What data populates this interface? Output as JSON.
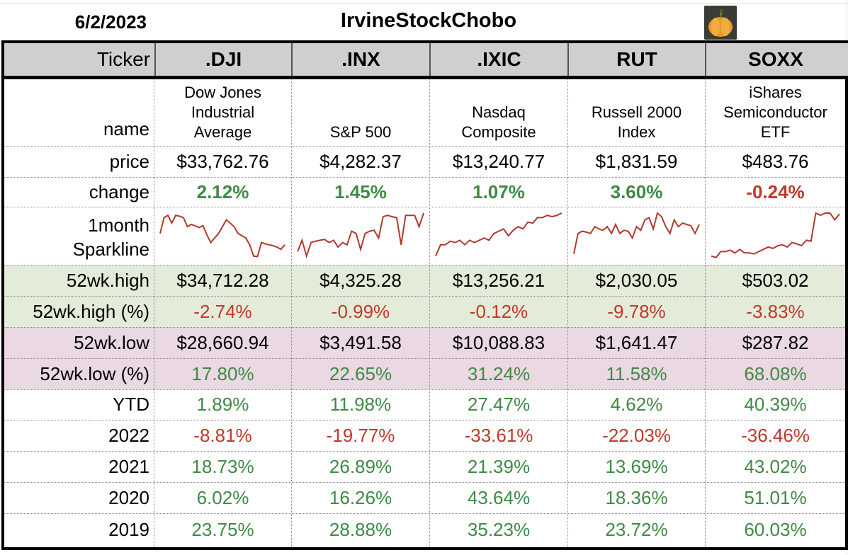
{
  "header": {
    "date": "6/2/2023",
    "title": "IrvineStockChobo"
  },
  "columns": {
    "label": "Ticker",
    "tickers": [
      ".DJI",
      ".INX",
      ".IXIC",
      "RUT",
      "SOXX"
    ]
  },
  "rows": {
    "name": {
      "label": "name",
      "values": [
        [
          "Dow Jones",
          "Industrial",
          "Average"
        ],
        [
          "S&P 500"
        ],
        [
          "Nasdaq",
          "Composite"
        ],
        [
          "Russell 2000",
          "Index"
        ],
        [
          "iShares",
          "Semiconductor",
          "ETF"
        ]
      ]
    },
    "price": {
      "label": "price",
      "values": [
        "$33,762.76",
        "$4,282.37",
        "$13,240.77",
        "$1,831.59",
        "$483.76"
      ]
    },
    "change": {
      "label": "change",
      "values": [
        "2.12%",
        "1.45%",
        "1.07%",
        "3.60%",
        "-0.24%"
      ]
    },
    "sparkline": {
      "label_line1": "1month",
      "label_line2": "Sparkline",
      "series": [
        [
          0.55,
          0.9,
          0.95,
          0.78,
          0.95,
          0.93,
          0.9,
          0.7,
          0.75,
          0.72,
          0.68,
          0.72,
          0.52,
          0.35,
          0.45,
          0.55,
          0.7,
          0.85,
          0.78,
          0.7,
          0.55,
          0.5,
          0.45,
          0.3,
          0.05,
          0.04,
          0.35,
          0.32,
          0.3,
          0.28,
          0.25,
          0.2,
          0.3
        ],
        [
          0.15,
          0.4,
          0.05,
          0.35,
          0.38,
          0.4,
          0.42,
          0.35,
          0.4,
          0.25,
          0.35,
          0.3,
          0.6,
          0.55,
          0.2,
          0.55,
          0.6,
          0.62,
          0.45,
          0.92,
          0.95,
          0.92,
          0.9,
          0.3,
          0.95,
          0.95,
          0.95,
          0.7,
          1.0
        ],
        [
          0.05,
          0.3,
          0.3,
          0.38,
          0.35,
          0.4,
          0.3,
          0.4,
          0.35,
          0.4,
          0.45,
          0.4,
          0.55,
          0.6,
          0.65,
          0.5,
          0.62,
          0.7,
          0.65,
          0.8,
          0.78,
          0.9,
          0.9,
          0.95,
          0.92,
          0.95,
          1.0
        ],
        [
          0.1,
          0.55,
          0.6,
          0.58,
          0.55,
          0.7,
          0.65,
          0.62,
          0.7,
          0.55,
          0.75,
          0.55,
          0.62,
          0.6,
          0.45,
          0.7,
          0.62,
          0.85,
          0.9,
          0.65,
          1.0,
          0.92,
          0.7,
          0.55,
          0.85,
          0.7,
          0.78,
          0.75,
          0.72,
          0.55,
          0.75
        ],
        [
          0.05,
          0.02,
          0.15,
          0.15,
          0.18,
          0.12,
          0.2,
          0.12,
          0.12,
          0.1,
          0.15,
          0.2,
          0.25,
          0.22,
          0.28,
          0.3,
          0.25,
          0.35,
          0.32,
          0.28,
          0.4,
          0.38,
          1.0,
          0.95,
          1.0,
          1.0,
          0.85,
          0.98
        ]
      ],
      "line_color": "#b03a2e"
    },
    "high": {
      "label": "52wk.high",
      "values": [
        "$34,712.28",
        "$4,325.28",
        "$13,256.21",
        "$2,030.05",
        "$503.02"
      ]
    },
    "high_pct": {
      "label": "52wk.high (%)",
      "values": [
        "-2.74%",
        "-0.99%",
        "-0.12%",
        "-9.78%",
        "-3.83%"
      ]
    },
    "low": {
      "label": "52wk.low",
      "values": [
        "$28,660.94",
        "$3,491.58",
        "$10,088.83",
        "$1,641.47",
        "$287.82"
      ]
    },
    "low_pct": {
      "label": "52wk.low (%)",
      "values": [
        "17.80%",
        "22.65%",
        "31.24%",
        "11.58%",
        "68.08%"
      ]
    },
    "ytd": {
      "label": "YTD",
      "values": [
        "1.89%",
        "11.98%",
        "27.47%",
        "4.62%",
        "40.39%"
      ]
    },
    "y2022": {
      "label": "2022",
      "values": [
        "-8.81%",
        "-19.77%",
        "-33.61%",
        "-22.03%",
        "-36.46%"
      ]
    },
    "y2021": {
      "label": "2021",
      "values": [
        "18.73%",
        "26.89%",
        "21.39%",
        "13.69%",
        "43.02%"
      ]
    },
    "y2020": {
      "label": "2020",
      "values": [
        "6.02%",
        "16.26%",
        "43.64%",
        "18.36%",
        "51.01%"
      ]
    },
    "y2019": {
      "label": "2019",
      "values": [
        "23.75%",
        "28.88%",
        "35.23%",
        "23.72%",
        "60.03%"
      ]
    }
  },
  "colors": {
    "positive": "#3f8a45",
    "negative": "#c0392b",
    "high_band": "#e3ecd9",
    "low_band": "#ead8e2",
    "header_band": "#cfcfcf"
  },
  "icons": {
    "avatar": "pumpkin-avatar-icon"
  }
}
